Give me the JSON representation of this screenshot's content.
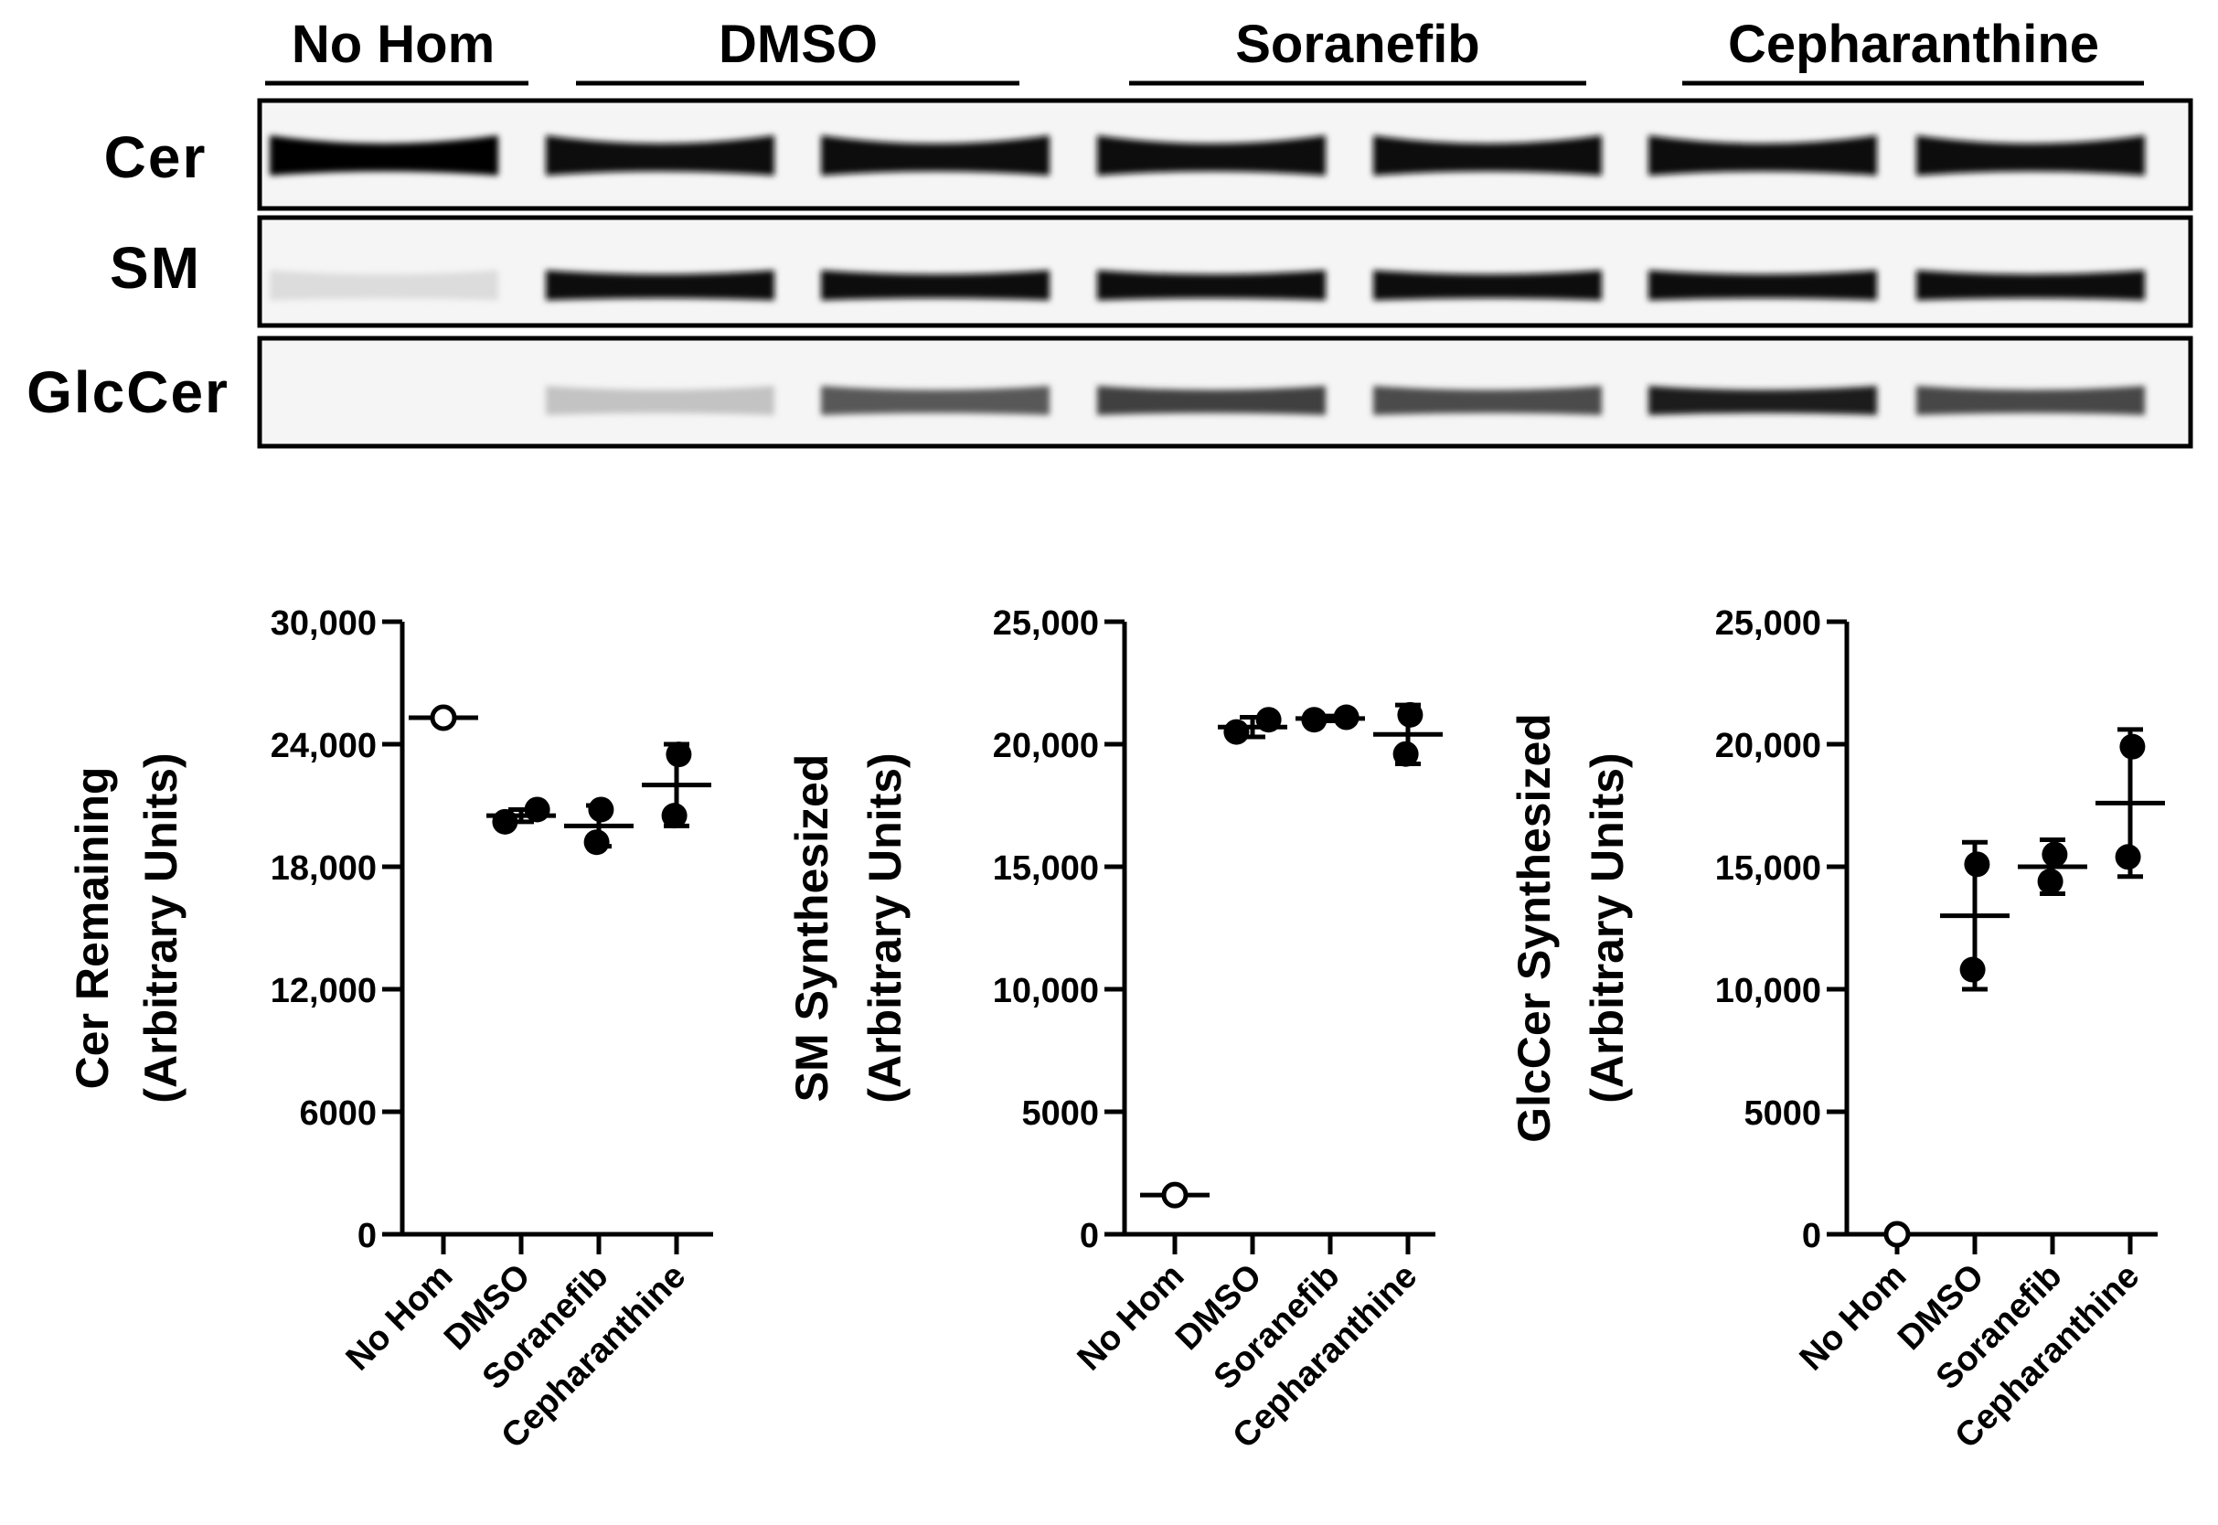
{
  "blot": {
    "groups": [
      "No Hom",
      "DMSO",
      "Soranefib",
      "Cepharanthine"
    ],
    "rows": [
      {
        "label": "Cer",
        "intensity": [
          1.0,
          0.95,
          0.95,
          0.95,
          0.95,
          0.95,
          0.95
        ]
      },
      {
        "label": "SM",
        "intensity": [
          0.12,
          0.97,
          0.97,
          0.97,
          0.97,
          0.97,
          0.97
        ]
      },
      {
        "label": "GlcCer",
        "intensity": [
          0.0,
          0.22,
          0.65,
          0.75,
          0.7,
          0.88,
          0.72
        ]
      }
    ]
  },
  "chart_data": [
    {
      "type": "scatter",
      "title": "",
      "ylabel_line1": "Cer Remaining",
      "ylabel_line2": "(Arbitrary Units)",
      "categories": [
        "No Hom",
        "DMSO",
        "Soranefib",
        "Cepharanthine"
      ],
      "yticks": [
        "0",
        "6000",
        "12,000",
        "18,000",
        "24,000",
        "30,000"
      ],
      "ytick_values": [
        0,
        6000,
        12000,
        18000,
        24000,
        30000
      ],
      "ylim": [
        0,
        30000
      ],
      "points": [
        {
          "category": "No Hom",
          "values": [
            25300
          ],
          "mean": 25300,
          "sd": 0,
          "marker": "open-circle"
        },
        {
          "category": "DMSO",
          "values": [
            20200,
            20800
          ],
          "mean": 20500,
          "sd": 300,
          "marker": "filled"
        },
        {
          "category": "Soranefib",
          "values": [
            19200,
            20800
          ],
          "mean": 20000,
          "sd": 1000,
          "marker": "filled"
        },
        {
          "category": "Cepharanthine",
          "values": [
            20500,
            23500
          ],
          "mean": 22000,
          "sd": 2000,
          "marker": "filled"
        }
      ]
    },
    {
      "type": "scatter",
      "title": "",
      "ylabel_line1": "SM Synthesized",
      "ylabel_line2": "(Arbitrary Units)",
      "categories": [
        "No Hom",
        "DMSO",
        "Soranefib",
        "Cepharanthine"
      ],
      "yticks": [
        "0",
        "5000",
        "10,000",
        "15,000",
        "20,000",
        "25,000"
      ],
      "ytick_values": [
        0,
        5000,
        10000,
        15000,
        20000,
        25000
      ],
      "ylim": [
        0,
        25000
      ],
      "points": [
        {
          "category": "No Hom",
          "values": [
            1600
          ],
          "mean": 1600,
          "sd": 0,
          "marker": "open-circle"
        },
        {
          "category": "DMSO",
          "values": [
            20500,
            21000
          ],
          "mean": 20700,
          "sd": 400,
          "marker": "filled"
        },
        {
          "category": "Soranefib",
          "values": [
            21000,
            21100
          ],
          "mean": 21050,
          "sd": 100,
          "marker": "filled"
        },
        {
          "category": "Cepharanthine",
          "values": [
            19600,
            21200
          ],
          "mean": 20400,
          "sd": 1200,
          "marker": "filled"
        }
      ]
    },
    {
      "type": "scatter",
      "title": "",
      "ylabel_line1": "GlcCer Synthesized",
      "ylabel_line2": "(Arbitrary Units)",
      "categories": [
        "No Hom",
        "DMSO",
        "Soranefib",
        "Cepharanthine"
      ],
      "yticks": [
        "0",
        "5000",
        "10,000",
        "15,000",
        "20,000",
        "25,000"
      ],
      "ytick_values": [
        0,
        5000,
        10000,
        15000,
        20000,
        25000
      ],
      "ylim": [
        0,
        25000
      ],
      "points": [
        {
          "category": "No Hom",
          "values": [
            0
          ],
          "mean": 0,
          "sd": 0,
          "marker": "open-circle"
        },
        {
          "category": "DMSO",
          "values": [
            10800,
            15100
          ],
          "mean": 13000,
          "sd": 3000,
          "marker": "filled"
        },
        {
          "category": "Soranefib",
          "values": [
            14400,
            15500
          ],
          "mean": 15000,
          "sd": 1100,
          "marker": "filled"
        },
        {
          "category": "Cepharanthine",
          "values": [
            15400,
            19900
          ],
          "mean": 17600,
          "sd": 3000,
          "marker": "filled"
        }
      ]
    }
  ]
}
